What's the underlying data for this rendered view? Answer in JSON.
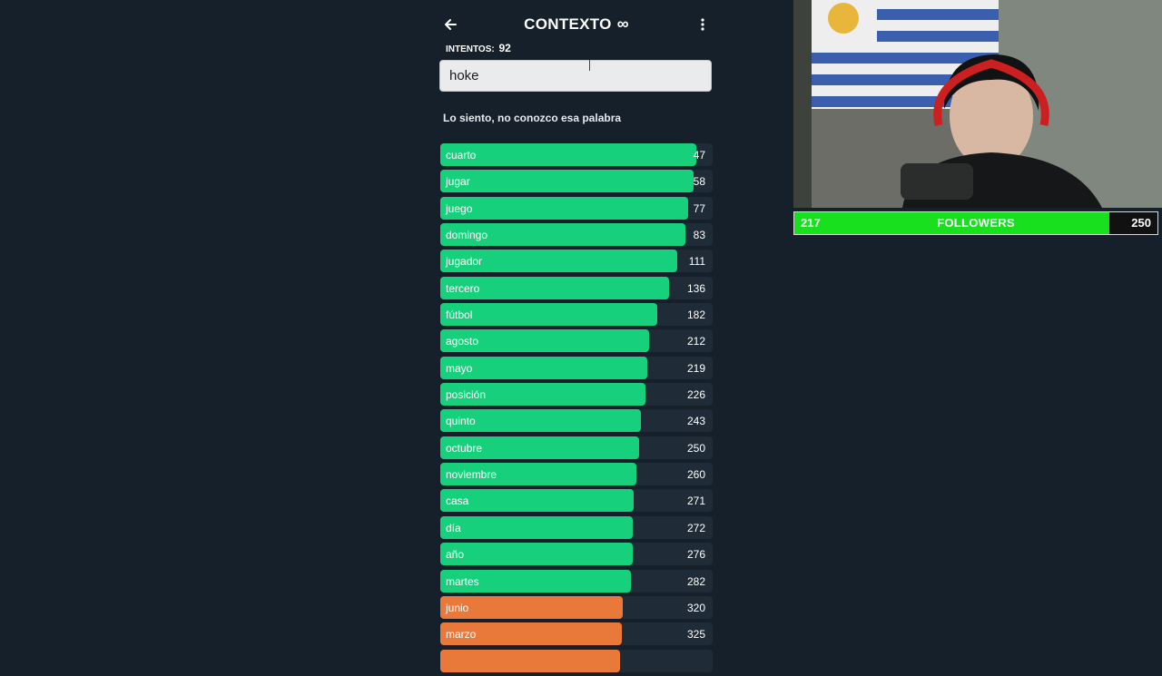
{
  "header": {
    "title": "CONTEXTO",
    "title_symbol": "∞",
    "back_icon": "arrow-left-icon",
    "menu_icon": "more-vertical-icon"
  },
  "attempts": {
    "label": "INTENTOS:",
    "count": "92"
  },
  "input": {
    "value": "hoke"
  },
  "message": "Lo siento, no conozco esa palabra",
  "colors": {
    "green": "#16d07b",
    "orange": "#e8793a",
    "track": "#1f2b36"
  },
  "guesses": [
    {
      "word": "cuarto",
      "rank": "47",
      "level": 0.94,
      "color": "green"
    },
    {
      "word": "jugar",
      "rank": "58",
      "level": 0.93,
      "color": "green"
    },
    {
      "word": "juego",
      "rank": "77",
      "level": 0.91,
      "color": "green"
    },
    {
      "word": "domingo",
      "rank": "83",
      "level": 0.9,
      "color": "green"
    },
    {
      "word": "jugador",
      "rank": "111",
      "level": 0.87,
      "color": "green"
    },
    {
      "word": "tercero",
      "rank": "136",
      "level": 0.84,
      "color": "green"
    },
    {
      "word": "fútbol",
      "rank": "182",
      "level": 0.795,
      "color": "green"
    },
    {
      "word": "agosto",
      "rank": "212",
      "level": 0.765,
      "color": "green"
    },
    {
      "word": "mayo",
      "rank": "219",
      "level": 0.76,
      "color": "green"
    },
    {
      "word": "posición",
      "rank": "226",
      "level": 0.753,
      "color": "green"
    },
    {
      "word": "quinto",
      "rank": "243",
      "level": 0.737,
      "color": "green"
    },
    {
      "word": "octubre",
      "rank": "250",
      "level": 0.73,
      "color": "green"
    },
    {
      "word": "noviembre",
      "rank": "260",
      "level": 0.72,
      "color": "green"
    },
    {
      "word": "casa",
      "rank": "271",
      "level": 0.71,
      "color": "green"
    },
    {
      "word": "día",
      "rank": "272",
      "level": 0.708,
      "color": "green"
    },
    {
      "word": "año",
      "rank": "276",
      "level": 0.705,
      "color": "green"
    },
    {
      "word": "martes",
      "rank": "282",
      "level": 0.7,
      "color": "green"
    },
    {
      "word": "junio",
      "rank": "320",
      "level": 0.67,
      "color": "orange"
    },
    {
      "word": "marzo",
      "rank": "325",
      "level": 0.665,
      "color": "orange"
    },
    {
      "word": "",
      "rank": "",
      "level": 0.66,
      "color": "orange"
    }
  ],
  "followers": {
    "current": "217",
    "label": "FOLLOWERS",
    "goal": "250",
    "progress": 0.868
  }
}
